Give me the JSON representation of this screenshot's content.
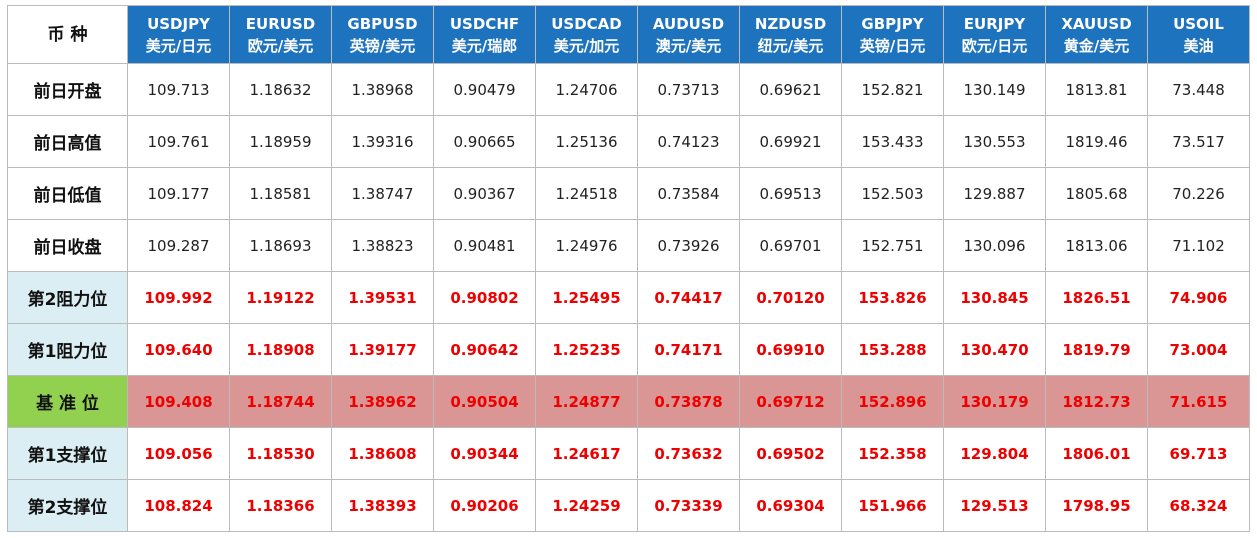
{
  "table": {
    "corner": "币 种",
    "columns": [
      {
        "code": "USDJPY",
        "name": "美元/日元"
      },
      {
        "code": "EURUSD",
        "name": "欧元/美元"
      },
      {
        "code": "GBPUSD",
        "name": "英镑/美元"
      },
      {
        "code": "USDCHF",
        "name": "美元/瑞郎"
      },
      {
        "code": "USDCAD",
        "name": "美元/加元"
      },
      {
        "code": "AUDUSD",
        "name": "澳元/美元"
      },
      {
        "code": "NZDUSD",
        "name": "纽元/美元"
      },
      {
        "code": "GBPJPY",
        "name": "英镑/日元"
      },
      {
        "code": "EURJPY",
        "name": "欧元/日元"
      },
      {
        "code": "XAUUSD",
        "name": "黄金/美元"
      },
      {
        "code": "USOIL",
        "name": "美油"
      }
    ],
    "rows": [
      {
        "label": "前日开盘",
        "values": [
          "109.713",
          "1.18632",
          "1.38968",
          "0.90479",
          "1.24706",
          "0.73713",
          "0.69621",
          "152.821",
          "130.149",
          "1813.81",
          "73.448"
        ]
      },
      {
        "label": "前日高值",
        "values": [
          "109.761",
          "1.18959",
          "1.39316",
          "0.90665",
          "1.25136",
          "0.74123",
          "0.69921",
          "153.433",
          "130.553",
          "1819.46",
          "73.517"
        ]
      },
      {
        "label": "前日低值",
        "values": [
          "109.177",
          "1.18581",
          "1.38747",
          "0.90367",
          "1.24518",
          "0.73584",
          "0.69513",
          "152.503",
          "129.887",
          "1805.68",
          "70.226"
        ]
      },
      {
        "label": "前日收盘",
        "values": [
          "109.287",
          "1.18693",
          "1.38823",
          "0.90481",
          "1.24976",
          "0.73926",
          "0.69701",
          "152.751",
          "130.096",
          "1813.06",
          "71.102"
        ]
      },
      {
        "label": "第2阻力位",
        "values": [
          "109.992",
          "1.19122",
          "1.39531",
          "0.90802",
          "1.25495",
          "0.74417",
          "0.70120",
          "153.826",
          "130.845",
          "1826.51",
          "74.906"
        ]
      },
      {
        "label": "第1阻力位",
        "values": [
          "109.640",
          "1.18908",
          "1.39177",
          "0.90642",
          "1.25235",
          "0.74171",
          "0.69910",
          "153.288",
          "130.470",
          "1819.79",
          "73.004"
        ]
      },
      {
        "label": "基 准 位",
        "values": [
          "109.408",
          "1.18744",
          "1.38962",
          "0.90504",
          "1.24877",
          "0.73878",
          "0.69712",
          "152.896",
          "130.179",
          "1812.73",
          "71.615"
        ]
      },
      {
        "label": "第1支撑位",
        "values": [
          "109.056",
          "1.18530",
          "1.38608",
          "0.90344",
          "1.24617",
          "0.73632",
          "0.69502",
          "152.358",
          "129.804",
          "1806.01",
          "69.713"
        ]
      },
      {
        "label": "第2支撑位",
        "values": [
          "108.824",
          "1.18366",
          "1.38393",
          "0.90206",
          "1.24259",
          "0.73339",
          "0.69304",
          "151.966",
          "129.513",
          "1798.95",
          "68.324"
        ]
      }
    ]
  }
}
